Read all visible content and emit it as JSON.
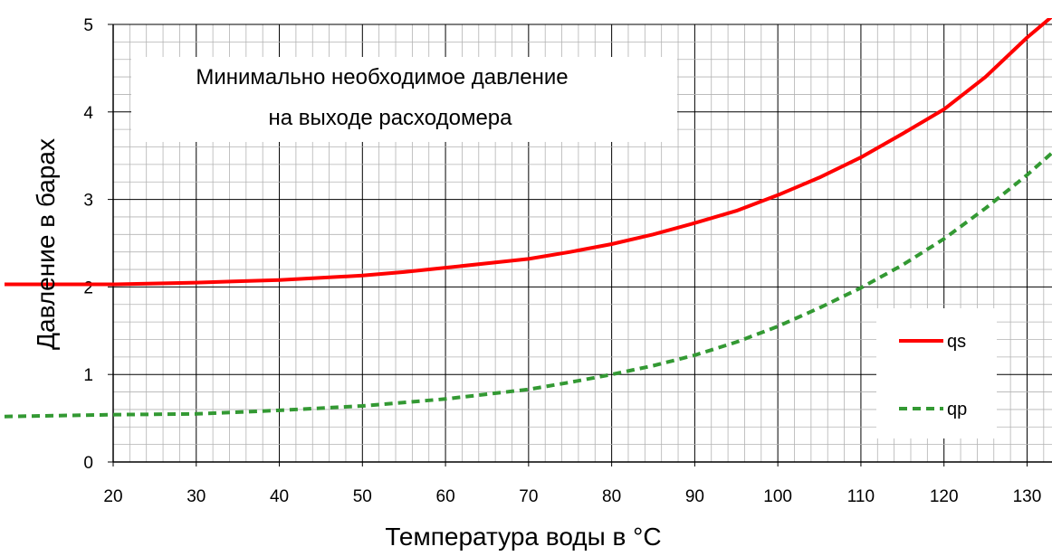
{
  "chart_data": {
    "type": "line",
    "title_lines": [
      "Минимально необходимое давление",
      "на выходе расходомера"
    ],
    "xlabel": "Температура воды в °C",
    "ylabel": "Давление в барах",
    "xlim": [
      20,
      133
    ],
    "ylim": [
      0,
      5
    ],
    "x_ticks": [
      20,
      30,
      40,
      50,
      60,
      70,
      80,
      90,
      100,
      110,
      120,
      130
    ],
    "y_ticks": [
      0,
      1,
      2,
      3,
      4,
      5
    ],
    "grid": true,
    "legend_position": "right",
    "series": [
      {
        "name": "qs",
        "color": "#ff0000",
        "style": "solid",
        "x": [
          20,
          30,
          40,
          50,
          55,
          60,
          65,
          70,
          75,
          80,
          85,
          90,
          95,
          100,
          105,
          110,
          115,
          120,
          125,
          130,
          135
        ],
        "y": [
          2.03,
          2.05,
          2.08,
          2.13,
          2.17,
          2.22,
          2.27,
          2.32,
          2.4,
          2.49,
          2.6,
          2.73,
          2.87,
          3.05,
          3.25,
          3.48,
          3.75,
          4.03,
          4.4,
          4.85,
          5.25
        ]
      },
      {
        "name": "qp",
        "color": "#339933",
        "style": "dashed",
        "x": [
          20,
          30,
          40,
          50,
          60,
          70,
          75,
          80,
          85,
          90,
          95,
          100,
          105,
          110,
          115,
          120,
          125,
          130,
          135
        ],
        "y": [
          0.54,
          0.55,
          0.59,
          0.64,
          0.72,
          0.83,
          0.91,
          1.0,
          1.1,
          1.22,
          1.37,
          1.55,
          1.76,
          1.99,
          2.25,
          2.55,
          2.9,
          3.28,
          3.7
        ]
      }
    ]
  }
}
